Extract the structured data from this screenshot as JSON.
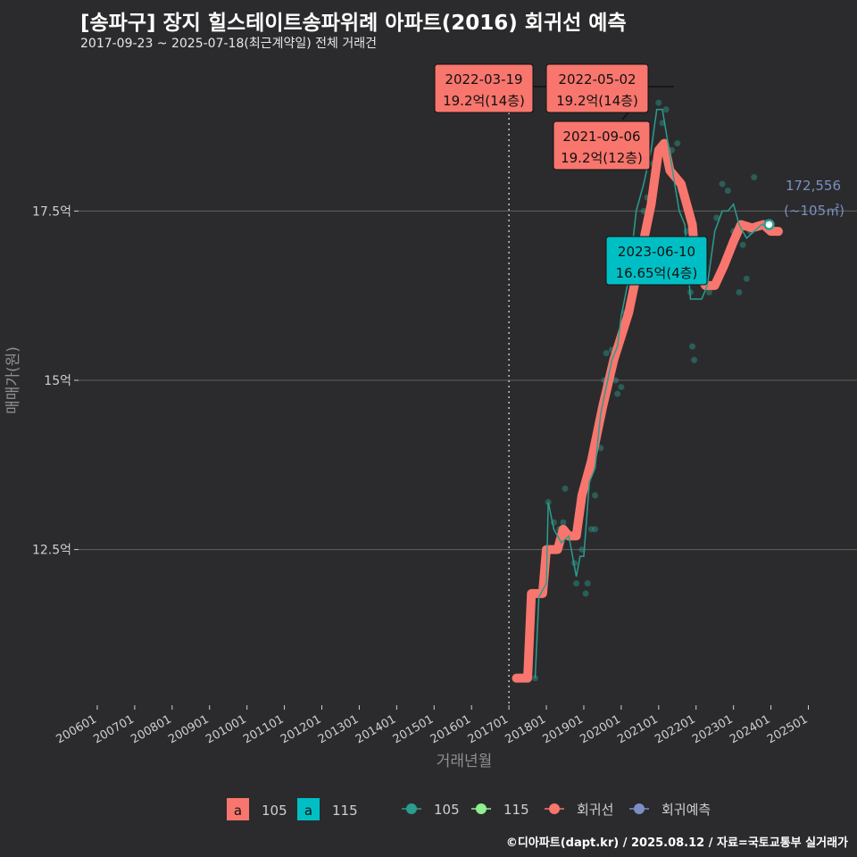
{
  "title": "[송파구] 장지 힐스테이트송파위례 아파트(2016) 회귀선 예측",
  "subtitle": "2017-09-23 ~ 2025-07-18(최근계약일) 전체 거래건",
  "caption": "©디아파트(dapt.kr) / 2025.08.12 / 자료=국토교통부 실거래가",
  "colors": {
    "area105": "#f8766d",
    "area115": "#00bfc4",
    "point105": "#2a9d8f",
    "point115": "#90ee90",
    "regression": "#f8766d",
    "forecast": "#7b8fc2",
    "grid": "#5f5f5f",
    "text": "#cfcfcf"
  },
  "chart_data": {
    "type": "line",
    "xlabel": "거래년월",
    "ylabel": "매매가(원)",
    "x_ticks": [
      "200601",
      "200701",
      "200801",
      "200901",
      "201001",
      "201101",
      "201201",
      "201301",
      "201401",
      "201501",
      "201601",
      "201701",
      "201801",
      "201901",
      "202001",
      "202101",
      "202201",
      "202301",
      "202401",
      "202501"
    ],
    "y_ticks": [
      {
        "value": 12.5,
        "label": "12.5억"
      },
      {
        "value": 15,
        "label": "15억"
      },
      {
        "value": 17.5,
        "label": "17.5억"
      }
    ],
    "ylim": [
      10.2,
      19.8
    ],
    "xlim": [
      2005.5,
      2026.3
    ],
    "reference_line_x": 2017.0,
    "series": [
      {
        "name": "회귀선",
        "kind": "regression",
        "points": [
          [
            2017.2,
            10.6
          ],
          [
            2017.5,
            10.6
          ],
          [
            2017.6,
            11.85
          ],
          [
            2017.9,
            11.85
          ],
          [
            2018.0,
            12.5
          ],
          [
            2018.3,
            12.5
          ],
          [
            2018.45,
            12.8
          ],
          [
            2018.6,
            12.7
          ],
          [
            2018.8,
            12.7
          ],
          [
            2018.95,
            13.3
          ],
          [
            2019.2,
            13.8
          ],
          [
            2019.5,
            14.6
          ],
          [
            2019.8,
            15.3
          ],
          [
            2020.2,
            16.0
          ],
          [
            2020.5,
            16.8
          ],
          [
            2020.8,
            17.6
          ],
          [
            2021.0,
            18.4
          ],
          [
            2021.15,
            18.5
          ],
          [
            2021.3,
            18.1
          ],
          [
            2021.6,
            17.9
          ],
          [
            2021.9,
            17.3
          ],
          [
            2022.0,
            16.65
          ],
          [
            2022.25,
            16.4
          ],
          [
            2022.5,
            16.4
          ],
          [
            2022.75,
            16.7
          ],
          [
            2023.0,
            17.05
          ],
          [
            2023.2,
            17.3
          ],
          [
            2023.5,
            17.25
          ],
          [
            2023.8,
            17.3
          ],
          [
            2024.0,
            17.2
          ],
          [
            2024.2,
            17.2
          ]
        ]
      },
      {
        "name": "105",
        "kind": "line",
        "points": [
          [
            2017.7,
            10.6
          ],
          [
            2017.8,
            11.8
          ],
          [
            2018.0,
            12.0
          ],
          [
            2018.05,
            13.2
          ],
          [
            2018.2,
            12.8
          ],
          [
            2018.4,
            12.6
          ],
          [
            2018.6,
            12.7
          ],
          [
            2018.8,
            12.1
          ],
          [
            2018.9,
            12.4
          ],
          [
            2019.0,
            12.4
          ],
          [
            2019.15,
            13.5
          ],
          [
            2019.3,
            13.7
          ],
          [
            2019.45,
            14.5
          ],
          [
            2019.6,
            14.9
          ],
          [
            2019.75,
            15.3
          ],
          [
            2019.9,
            15.5
          ],
          [
            2020.0,
            15.95
          ],
          [
            2020.2,
            16.5
          ],
          [
            2020.4,
            17.5
          ],
          [
            2020.6,
            17.9
          ],
          [
            2020.8,
            18.4
          ],
          [
            2020.95,
            19.0
          ],
          [
            2021.1,
            19.0
          ],
          [
            2021.25,
            18.5
          ],
          [
            2021.4,
            18.0
          ],
          [
            2021.55,
            17.5
          ],
          [
            2021.7,
            17.3
          ],
          [
            2021.85,
            16.2
          ],
          [
            2022.0,
            16.2
          ],
          [
            2022.15,
            16.2
          ],
          [
            2022.3,
            16.4
          ],
          [
            2022.5,
            17.2
          ],
          [
            2022.7,
            17.5
          ],
          [
            2022.85,
            17.5
          ],
          [
            2023.0,
            17.6
          ],
          [
            2023.15,
            17.3
          ],
          [
            2023.35,
            17.1
          ],
          [
            2023.55,
            17.2
          ],
          [
            2023.75,
            17.3
          ],
          [
            2023.95,
            17.3
          ]
        ]
      },
      {
        "name": "회귀예측",
        "kind": "forecast",
        "points": [
          [
            2023.95,
            17.3
          ]
        ]
      }
    ],
    "scatter_105": [
      [
        2017.7,
        10.6
      ],
      [
        2017.9,
        11.9
      ],
      [
        2018.05,
        13.2
      ],
      [
        2018.2,
        12.9
      ],
      [
        2018.35,
        12.8
      ],
      [
        2018.45,
        12.9
      ],
      [
        2018.5,
        13.4
      ],
      [
        2018.6,
        12.7
      ],
      [
        2018.75,
        12.3
      ],
      [
        2018.8,
        12.0
      ],
      [
        2018.95,
        12.5
      ],
      [
        2019.05,
        11.85
      ],
      [
        2019.1,
        12.0
      ],
      [
        2019.2,
        12.8
      ],
      [
        2019.3,
        12.8
      ],
      [
        2019.3,
        13.3
      ],
      [
        2019.45,
        14.0
      ],
      [
        2019.55,
        15.0
      ],
      [
        2019.6,
        15.4
      ],
      [
        2019.75,
        15.45
      ],
      [
        2019.85,
        15.0
      ],
      [
        2019.9,
        14.8
      ],
      [
        2020.0,
        14.9
      ],
      [
        2020.1,
        16.0
      ],
      [
        2020.3,
        16.4
      ],
      [
        2020.5,
        17.0
      ],
      [
        2020.6,
        17.5
      ],
      [
        2020.7,
        17.7
      ],
      [
        2020.85,
        18.2
      ],
      [
        2021.0,
        19.1
      ],
      [
        2021.1,
        18.8
      ],
      [
        2021.2,
        19.0
      ],
      [
        2021.35,
        18.4
      ],
      [
        2021.5,
        18.5
      ],
      [
        2021.6,
        17.8
      ],
      [
        2021.75,
        17.2
      ],
      [
        2021.85,
        16.3
      ],
      [
        2021.9,
        15.5
      ],
      [
        2021.95,
        15.3
      ],
      [
        2022.05,
        16.8
      ],
      [
        2022.2,
        17.0
      ],
      [
        2022.35,
        16.3
      ],
      [
        2022.55,
        17.4
      ],
      [
        2022.7,
        17.9
      ],
      [
        2022.85,
        17.8
      ],
      [
        2023.0,
        17.2
      ],
      [
        2023.15,
        16.3
      ],
      [
        2023.25,
        17.0
      ],
      [
        2023.35,
        16.5
      ],
      [
        2023.45,
        17.2
      ],
      [
        2023.55,
        18.0
      ],
      [
        2023.65,
        17.3
      ]
    ],
    "scatter_115": [
      [
        2022.0,
        16.65
      ]
    ],
    "annotations": [
      {
        "date": "2022-03-19",
        "value": "19.2억(14층)",
        "type": "105"
      },
      {
        "date": "2022-05-02",
        "value": "19.2억(14층)",
        "type": "105"
      },
      {
        "date": "2021-09-06",
        "value": "19.2억(12층)",
        "type": "105"
      },
      {
        "date": "2023-06-10",
        "value": "16.65억(4층)",
        "type": "115"
      }
    ],
    "forecast_label": {
      "value": "172,556",
      "area": "(~105㎡)"
    },
    "legend": {
      "area": [
        {
          "key": "a",
          "label": "105"
        },
        {
          "key": "a",
          "label": "115"
        }
      ],
      "lines": [
        {
          "label": "105"
        },
        {
          "label": "115"
        },
        {
          "label": "회귀선"
        },
        {
          "label": "회귀예측"
        }
      ]
    }
  }
}
